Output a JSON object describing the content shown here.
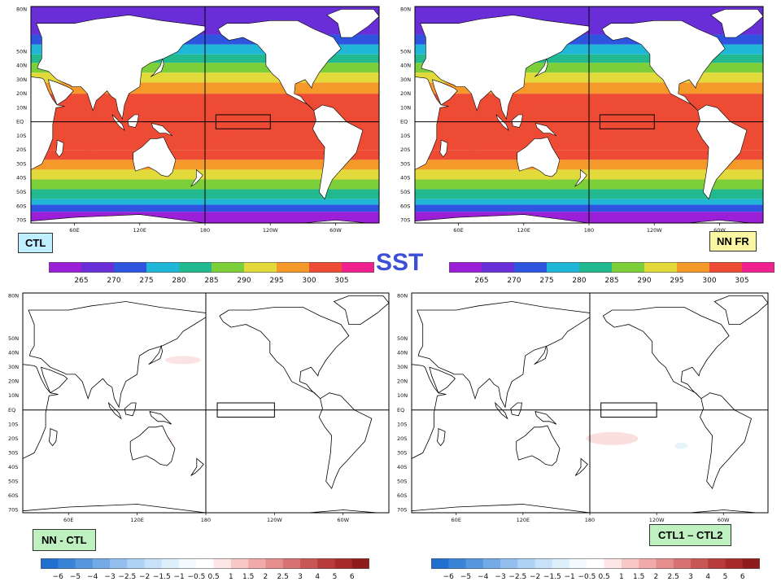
{
  "title": "SST",
  "panels": [
    {
      "id": "ctl",
      "label": "CTL",
      "label_color": "#bfefff",
      "kind": "absolute"
    },
    {
      "id": "nnfr",
      "label": "NN FR",
      "label_color": "#fbf6a2",
      "kind": "absolute"
    },
    {
      "id": "nnctl",
      "label": "NN - CTL",
      "label_color": "#bff0bf",
      "kind": "difference"
    },
    {
      "id": "ctl1ctl2",
      "label": "CTL1 – CTL2",
      "label_color": "#bff0bf",
      "kind": "difference"
    }
  ],
  "map_axes": {
    "lat_labels": [
      "80N",
      "50N",
      "40N",
      "30N",
      "20N",
      "10N",
      "EQ",
      "10S",
      "20S",
      "30S",
      "40S",
      "50S",
      "60S",
      "70S"
    ],
    "lon_labels": [
      "60E",
      "120E",
      "180",
      "120W",
      "60W"
    ]
  },
  "colorbars": {
    "sst": {
      "labels": [
        "265",
        "270",
        "275",
        "280",
        "285",
        "290",
        "295",
        "300",
        "305"
      ],
      "colors": [
        "#9a1fd6",
        "#6a2ed8",
        "#2f55e0",
        "#20b6d8",
        "#22b990",
        "#7dcf3a",
        "#e2d93a",
        "#f59a2a",
        "#ee4b34",
        "#f0208f"
      ]
    },
    "diff": {
      "labels": [
        "−6",
        "−5",
        "−4",
        "−3",
        "−2.5",
        "−2",
        "−1.5",
        "−1",
        "−0.5",
        "0.5",
        "1",
        "1.5",
        "2",
        "2.5",
        "3",
        "4",
        "5",
        "6"
      ],
      "colors": [
        "#1f6fcf",
        "#3a84d8",
        "#5597de",
        "#74abe6",
        "#92bfee",
        "#aed2f3",
        "#c7e2f8",
        "#def0fb",
        "#f3fbff",
        "#ffffff",
        "#fde6e6",
        "#f8c8c8",
        "#f0aaaa",
        "#e68e8e",
        "#d87272",
        "#c85656",
        "#b83c3c",
        "#a82a2a",
        "#8f1c1c"
      ]
    }
  }
}
